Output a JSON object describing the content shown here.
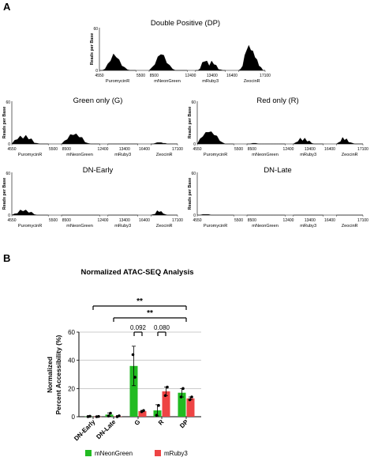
{
  "panels": {
    "A": "A",
    "B": "B"
  },
  "track_meta": {
    "ylabel": "Reads per Base",
    "yticks": [
      0,
      60
    ],
    "genes": [
      "PuromycinR",
      "mNeonGreen",
      "mRuby3",
      "ZeocinR"
    ],
    "segments": [
      {
        "gene": "PuromycinR",
        "start": 4550,
        "end": 5500
      },
      {
        "gene": "mNeonGreen",
        "start": 8500,
        "end": 12400
      },
      {
        "gene": "mRuby3",
        "start": 12400,
        "end": 13400
      },
      {
        "gene": "ZeocinR",
        "start": 16400,
        "end": 17100
      }
    ],
    "tick_labels": [
      "4550",
      "5500",
      "8500",
      "12400",
      "13400",
      "16400",
      "17100"
    ]
  },
  "chart_data": [
    {
      "type": "area",
      "title": "Double Positive (DP)",
      "ylabel": "Reads per Base",
      "ylim": [
        0,
        60
      ],
      "series": [
        {
          "values": [
            [
              0,
              0,
              2,
              8,
              15,
              22,
              20,
              14,
              8,
              3,
              1,
              0,
              0,
              0
            ],
            [
              0,
              3,
              10,
              18,
              24,
              20,
              12,
              6,
              2,
              0,
              0,
              0,
              0,
              0
            ],
            [
              0,
              0,
              4,
              10,
              14,
              12,
              8,
              12,
              10,
              6,
              3,
              1,
              0,
              0
            ],
            [
              0,
              2,
              8,
              20,
              30,
              34,
              30,
              26,
              20,
              14,
              8,
              3,
              0,
              0
            ]
          ]
        }
      ]
    },
    {
      "type": "area",
      "title": "Green only (G)",
      "ylabel": "Reads per Base",
      "ylim": [
        0,
        60
      ],
      "series": [
        {
          "values": [
            [
              0,
              4,
              8,
              10,
              9,
              11,
              8,
              6,
              3,
              1,
              0,
              0,
              0,
              0
            ],
            [
              0,
              3,
              8,
              12,
              14,
              13,
              11,
              8,
              4,
              1,
              0,
              0,
              0,
              0
            ],
            [
              0,
              0,
              0,
              0,
              0,
              0,
              0,
              0,
              0,
              0,
              0,
              0,
              0,
              0
            ],
            [
              0,
              0,
              1,
              2,
              2,
              2,
              1,
              1,
              0,
              0,
              0,
              0,
              0,
              0
            ]
          ]
        }
      ]
    },
    {
      "type": "area",
      "title": "Red only (R)",
      "ylabel": "Reads per Base",
      "ylim": [
        0,
        60
      ],
      "series": [
        {
          "values": [
            [
              0,
              6,
              12,
              15,
              18,
              16,
              14,
              10,
              6,
              2,
              0,
              0,
              0,
              0
            ],
            [
              0,
              0,
              1,
              1,
              0,
              0,
              0,
              0,
              0,
              0,
              0,
              0,
              0,
              0
            ],
            [
              0,
              2,
              5,
              7,
              6,
              7,
              5,
              3,
              1,
              0,
              0,
              0,
              0,
              0
            ],
            [
              0,
              2,
              5,
              8,
              7,
              6,
              4,
              2,
              1,
              0,
              0,
              0,
              0,
              0
            ]
          ]
        }
      ]
    },
    {
      "type": "area",
      "title": "DN-Early",
      "ylabel": "Reads per Base",
      "ylim": [
        0,
        60
      ],
      "series": [
        {
          "values": [
            [
              0,
              2,
              4,
              6,
              7,
              6,
              5,
              3,
              1,
              0,
              0,
              0,
              0,
              0
            ],
            [
              0,
              0,
              0,
              0,
              0,
              0,
              0,
              0,
              0,
              0,
              0,
              0,
              0,
              0
            ],
            [
              0,
              0,
              0,
              0,
              0,
              0,
              0,
              0,
              0,
              0,
              0,
              0,
              0,
              0
            ],
            [
              0,
              1,
              3,
              5,
              6,
              4,
              2,
              1,
              0,
              0,
              0,
              0,
              0,
              0
            ]
          ]
        }
      ]
    },
    {
      "type": "area",
      "title": "DN-Late",
      "ylabel": "Reads per Base",
      "ylim": [
        0,
        60
      ],
      "series": [
        {
          "values": [
            [
              0,
              0,
              1,
              1,
              1,
              0,
              0,
              0,
              0,
              0,
              0,
              0,
              0,
              0
            ],
            [
              0,
              0,
              0,
              0,
              0,
              0,
              0,
              0,
              0,
              0,
              0,
              0,
              0,
              0
            ],
            [
              0,
              0,
              0,
              0,
              0,
              0,
              0,
              0,
              0,
              0,
              0,
              0,
              0,
              0
            ],
            [
              0,
              0,
              0,
              0,
              0,
              0,
              0,
              0,
              0,
              0,
              0,
              0,
              0,
              0
            ]
          ]
        }
      ]
    },
    {
      "type": "bar",
      "title": "Normalized ATAC-SEQ Analysis",
      "ylabel": "Normalized\nPercent Accessibility (%)",
      "ylim": [
        0,
        60
      ],
      "yticks": [
        0,
        20,
        40,
        60
      ],
      "grid": true,
      "categories": [
        "DN-Early",
        "DN-Late",
        "G",
        "R",
        "DP"
      ],
      "series": [
        {
          "name": "mNeonGreen",
          "color": "#22bb22",
          "values": [
            0.2,
            1.5,
            36,
            4.5,
            17
          ],
          "errors": [
            0.3,
            1.2,
            14,
            4,
            3
          ],
          "points": [
            [
              0.1,
              0.3
            ],
            [
              0.5,
              2.5
            ],
            [
              44,
              28
            ],
            [
              1,
              8
            ],
            [
              14,
              20
            ]
          ]
        },
        {
          "name": "mRuby3",
          "color": "#ee4444",
          "values": [
            0.1,
            0.3,
            4,
            18,
            13
          ],
          "errors": [
            0.2,
            0.5,
            0.5,
            3,
            1
          ],
          "points": [
            [
              0,
              0.2
            ],
            [
              0,
              0.6
            ],
            [
              3.6,
              4.4
            ],
            [
              15,
              21
            ],
            [
              12,
              14
            ]
          ]
        }
      ],
      "annotations": {
        "sig1": "**",
        "sig2": "**",
        "p_g": "0.092",
        "p_r": "0.080"
      }
    }
  ]
}
